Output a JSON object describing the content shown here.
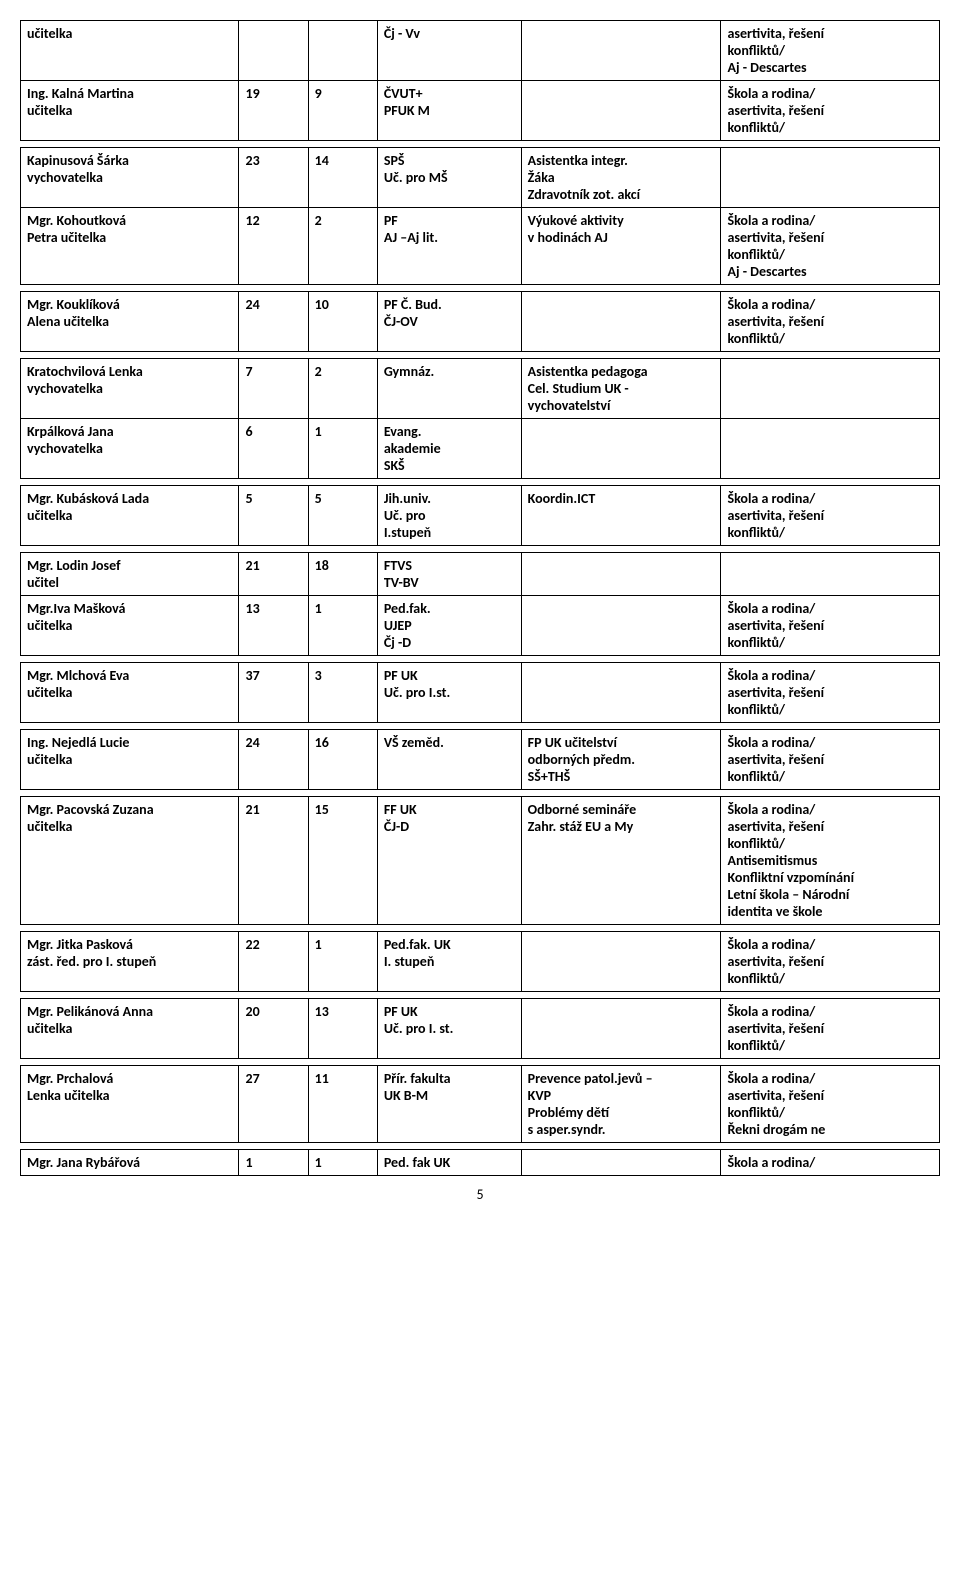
{
  "pageNumber": "5",
  "sections": [
    {
      "rows": [
        {
          "c0": "učitelka",
          "c1": "",
          "c2": "",
          "c3": "Čj - Vv",
          "c4": "",
          "c5": "asertivita, řešení\nkonfliktů/\nAj - Descartes"
        },
        {
          "c0": "Ing. Kalná Martina\nučitelka",
          "c1": "19",
          "c2": "9",
          "c3": "ČVUT+\nPFUK M",
          "c4": "",
          "c5": "Škola a rodina/\nasertivita, řešení\nkonfliktů/"
        }
      ]
    },
    {
      "rows": [
        {
          "c0": "Kapinusová Šárka\nvychovatelka",
          "c1": "23",
          "c2": "14",
          "c3": "SPŠ\nUč. pro MŠ",
          "c4": "Asistentka integr.\nŽáka\nZdravotník zot. akcí",
          "c5": ""
        },
        {
          "c0": "Mgr. Kohoutková\nPetra učitelka",
          "c1": "12",
          "c2": "2",
          "c3": "PF\nAJ –Aj lit.",
          "c4": "Výukové aktivity\nv hodinách AJ",
          "c5": "Škola a rodina/\nasertivita, řešení\nkonfliktů/\nAj - Descartes"
        }
      ]
    },
    {
      "rows": [
        {
          "c0": "Mgr. Kouklíková\nAlena učitelka",
          "c1": "24",
          "c2": "10",
          "c3": "PF Č. Bud.\nČJ-OV",
          "c4": "",
          "c5": "Škola a rodina/\nasertivita, řešení\nkonfliktů/"
        }
      ]
    },
    {
      "rows": [
        {
          "c0": "Kratochvilová Lenka\nvychovatelka",
          "c1": "7",
          "c2": "2",
          "c3": "Gymnáz.",
          "c4": "Asistentka pedagoga\nCel. Studium UK -\nvychovatelství",
          "c5": ""
        },
        {
          "c0": "Krpálková Jana\nvychovatelka",
          "c1": "6",
          "c2": "1",
          "c3": "Evang.\nakademie\nSKŠ",
          "c4": "",
          "c5": ""
        }
      ]
    },
    {
      "rows": [
        {
          "c0": "Mgr. Kubásková Lada\nučitelka",
          "c1": "5",
          "c2": "5",
          "c3": "Jih.univ.\nUč. pro\nI.stupeň",
          "c4": "Koordin.ICT",
          "c5": "Škola a rodina/\nasertivita, řešení\nkonfliktů/"
        }
      ]
    },
    {
      "rows": [
        {
          "c0": "Mgr. Lodin Josef\n učitel",
          "c1": "21",
          "c2": "18",
          "c3": "FTVS\nTV-BV",
          "c4": "",
          "c5": ""
        },
        {
          "c0": "Mgr.Iva Mašková\nučitelka",
          "c1": "13",
          "c2": "1",
          "c3": "Ped.fak.\nUJEP\nČj -D",
          "c4": "",
          "c5": "Škola a rodina/\nasertivita, řešení\nkonfliktů/"
        }
      ]
    },
    {
      "rows": [
        {
          "c0": "Mgr. Mlchová Eva\nučitelka",
          "c1": "37",
          "c2": "3",
          "c3": "PF UK\nUč. pro I.st.",
          "c4": "",
          "c5": "Škola a rodina/\nasertivita, řešení\nkonfliktů/"
        }
      ]
    },
    {
      "rows": [
        {
          "c0": "Ing. Nejedlá Lucie\nučitelka",
          "c1": "24",
          "c2": "16",
          "c3": "VŠ zeměd.",
          "c4": "FP UK učitelství\nodborných předm.\nSŠ+THŠ",
          "c5": "Škola a rodina/\nasertivita, řešení\nkonfliktů/"
        }
      ]
    },
    {
      "rows": [
        {
          "c0": "Mgr. Pacovská Zuzana\nučitelka",
          "c1": "21",
          "c2": "15",
          "c3": "FF UK\nČJ-D",
          "c4": "Odborné semináře\nZahr. stáž EU a My",
          "c5": "Škola a rodina/\nasertivita, řešení\nkonfliktů/\nAntisemitismus\nKonfliktní vzpomínání\nLetní škola – Národní\nidentita ve škole"
        }
      ]
    },
    {
      "rows": [
        {
          "c0": "Mgr. Jitka Pasková\nzást. řed. pro I. stupeň",
          "c1": "22",
          "c2": "1",
          "c3": "Ped.fak. UK\nI. stupeň",
          "c4": "",
          "c5": "Škola a rodina/\nasertivita, řešení\nkonfliktů/"
        }
      ]
    },
    {
      "rows": [
        {
          "c0": "Mgr. Pelikánová Anna\nučitelka",
          "c1": "20",
          "c2": "13",
          "c3": "PF UK\nUč. pro I. st.",
          "c4": "",
          "c5": "Škola a rodina/\nasertivita, řešení\nkonfliktů/"
        }
      ]
    },
    {
      "rows": [
        {
          "c0": "Mgr. Prchalová\nLenka učitelka",
          "c1": "27",
          "c2": "11",
          "c3": "Přír. fakulta\nUK B-M",
          "c4": "Prevence patol.jevů –\nKVP\nProblémy dětí\ns asper.syndr.",
          "c5": "Škola a rodina/\nasertivita, řešení\nkonfliktů/\nŘekni drogám ne"
        }
      ]
    },
    {
      "rows": [
        {
          "c0": "Mgr. Jana Rybářová",
          "c1": "1",
          "c2": "1",
          "c3": "Ped. fak UK",
          "c4": "",
          "c5": "Škola a rodina/"
        }
      ]
    }
  ]
}
